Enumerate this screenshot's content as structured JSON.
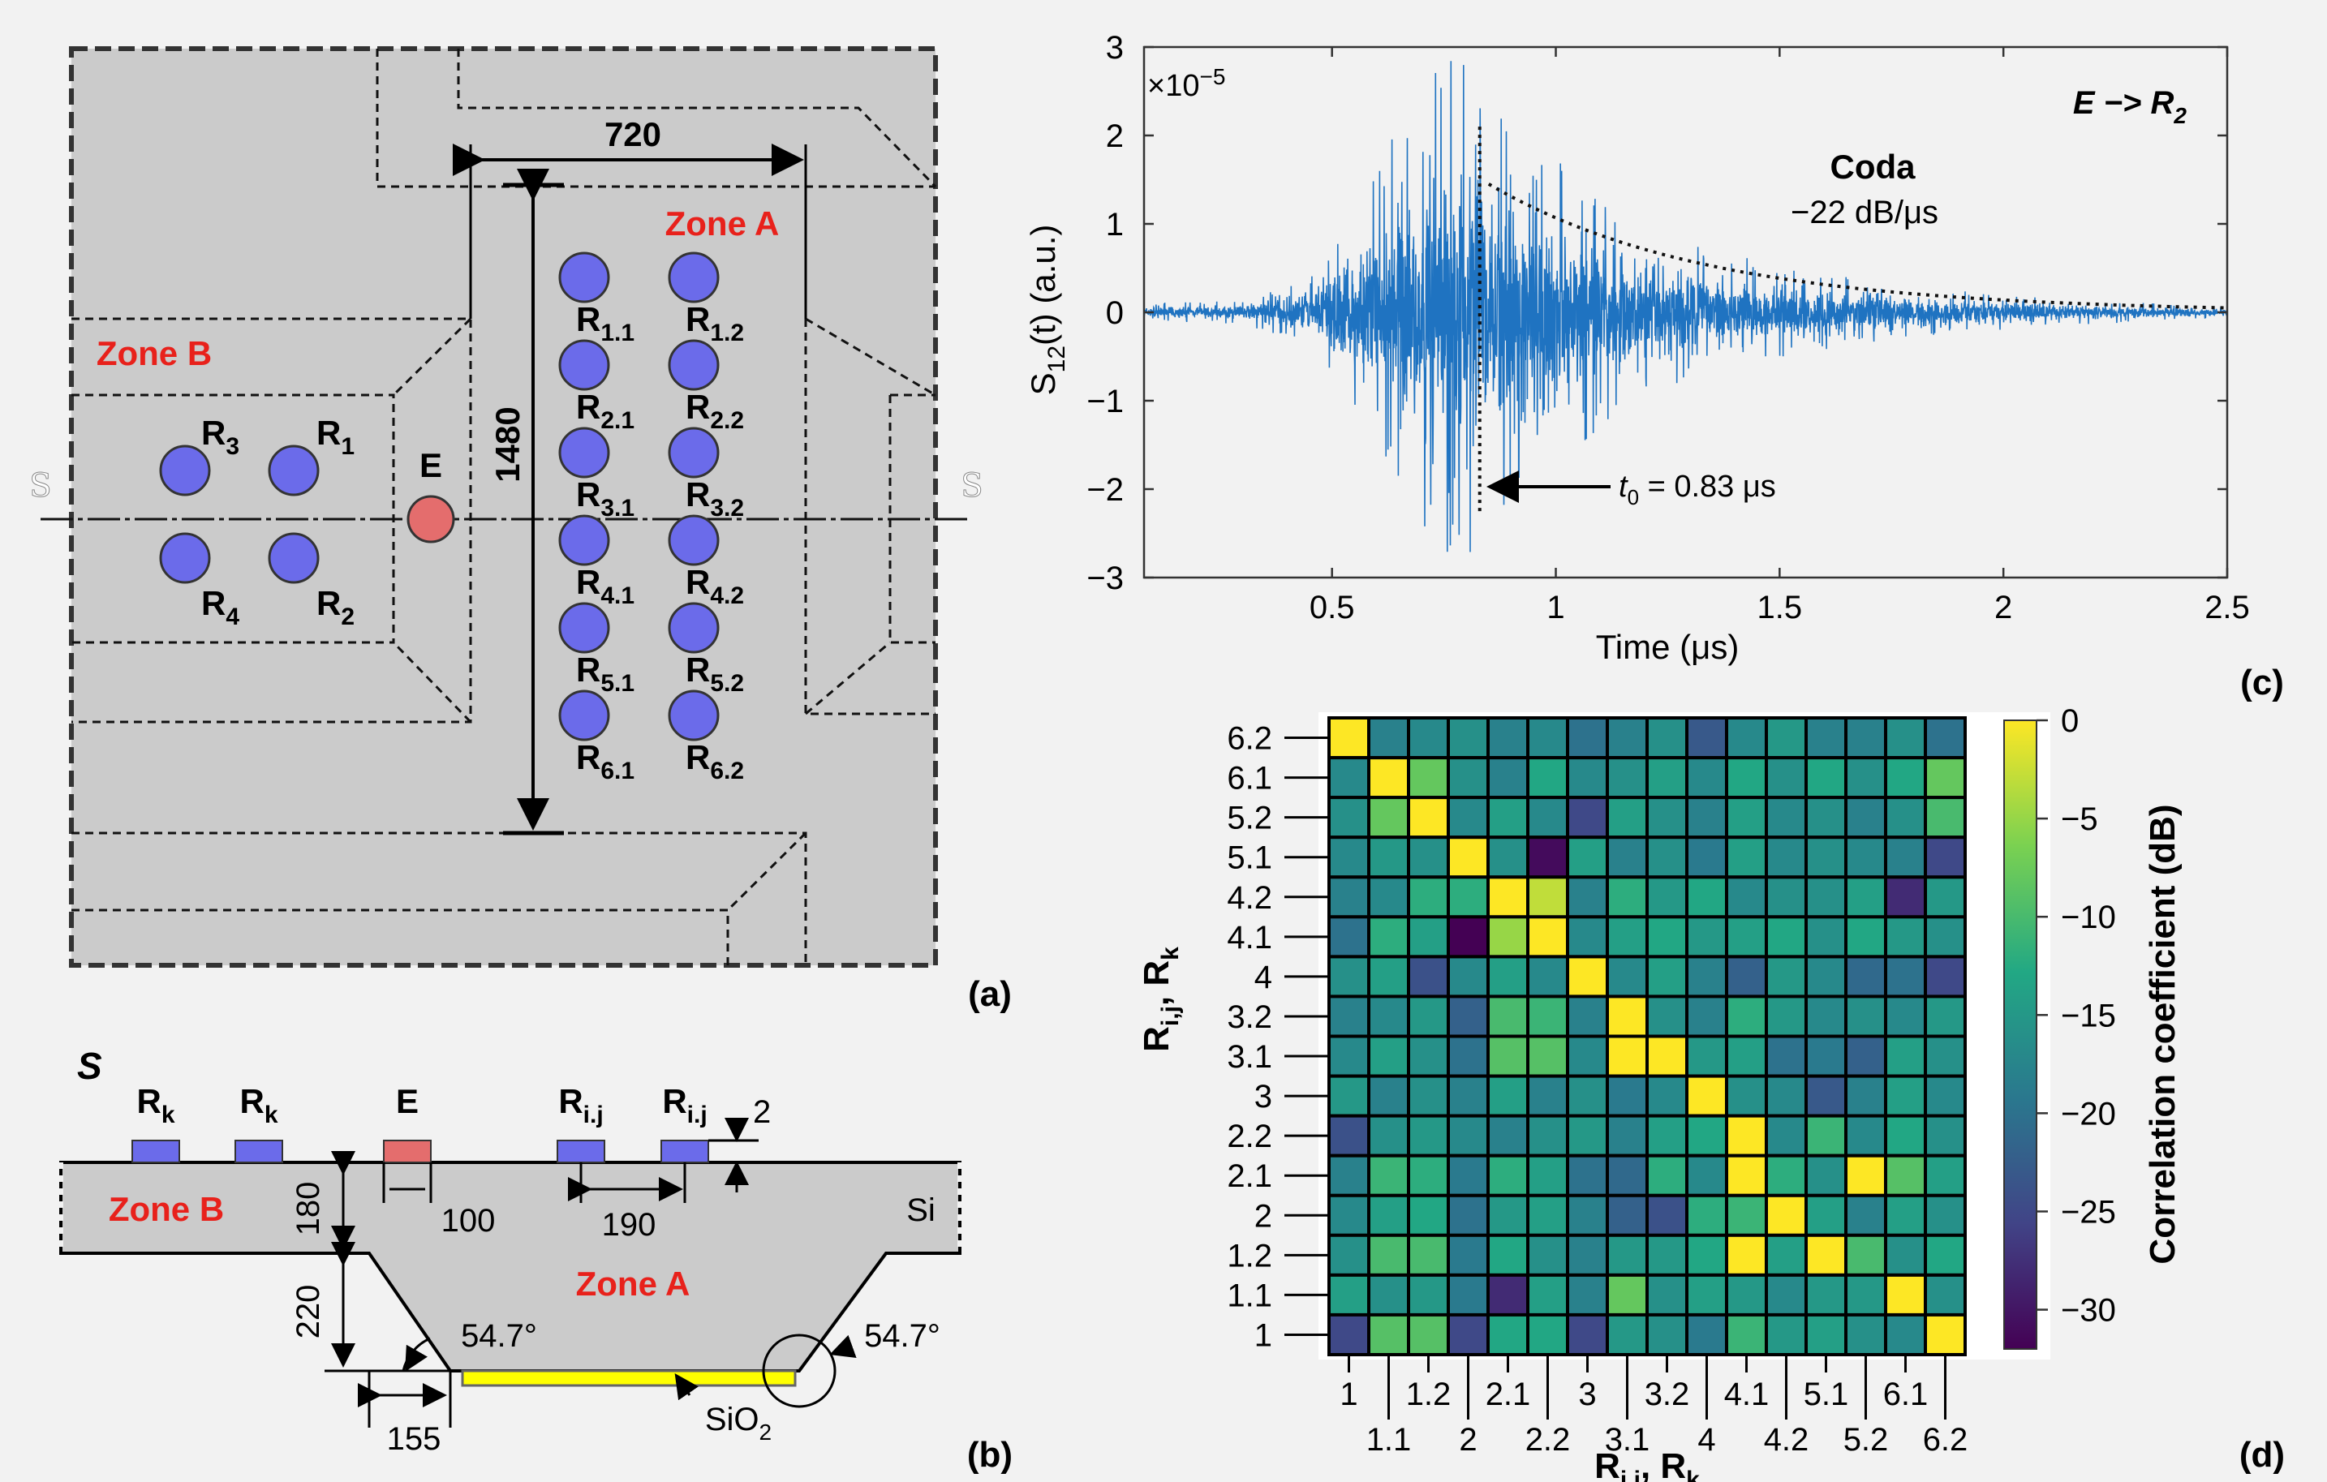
{
  "panel_a": {
    "label": "(a)",
    "dim_width": "720",
    "dim_height": "1480",
    "zone_a": "Zone A",
    "zone_b": "Zone B",
    "section_left": "S",
    "section_right": "S",
    "emitter": "E",
    "receivers_b": [
      {
        "base": "R",
        "sub": "3"
      },
      {
        "base": "R",
        "sub": "1"
      },
      {
        "base": "R",
        "sub": "4"
      },
      {
        "base": "R",
        "sub": "2"
      }
    ],
    "receivers_a": [
      {
        "base": "R",
        "sub": "1.1"
      },
      {
        "base": "R",
        "sub": "1.2"
      },
      {
        "base": "R",
        "sub": "2.1"
      },
      {
        "base": "R",
        "sub": "2.2"
      },
      {
        "base": "R",
        "sub": "3.1"
      },
      {
        "base": "R",
        "sub": "3.2"
      },
      {
        "base": "R",
        "sub": "4.1"
      },
      {
        "base": "R",
        "sub": "4.2"
      },
      {
        "base": "R",
        "sub": "5.1"
      },
      {
        "base": "R",
        "sub": "5.2"
      },
      {
        "base": "R",
        "sub": "6.1"
      },
      {
        "base": "R",
        "sub": "6.2"
      }
    ],
    "colors": {
      "receiver": "#6b6bea",
      "emitter": "#e46d6d",
      "zone_label": "#e8211b",
      "substrate": "#cbcbcb"
    }
  },
  "panel_b": {
    "label": "(b)",
    "section_title": "S",
    "rk_base": "R",
    "rk_sub": "k",
    "rij_base": "R",
    "rij_sub": "i.j",
    "emitter": "E",
    "zone_b": "Zone B",
    "zone_a": "Zone A",
    "material": "Si",
    "oxide_base": "SiO",
    "oxide_sub": "2",
    "dims": {
      "pad_height": "2",
      "thickness_top": "180",
      "thickness_cavity": "220",
      "emitter_width": "100",
      "pad_pitch": "190",
      "offset": "155"
    },
    "angle_left": "54.7°",
    "angle_right": "54.7°"
  },
  "panel_c": {
    "label": "(c)",
    "annotation_path": {
      "from": "E",
      "arrow": "−>",
      "to_base": "R",
      "to_sub": "2"
    },
    "coda_title": "Coda",
    "coda_rate": "−22 dB/μs",
    "t0_base": "t",
    "t0_sub": "0",
    "t0_value": " = 0.83 μs",
    "y_multiplier_base": "×10",
    "y_multiplier_exp": "−5",
    "ylabel_base": "S",
    "ylabel_sub": "12",
    "ylabel_rest": "(t) (a.u.)",
    "line_color": "#1f73c1"
  },
  "panel_d": {
    "label": "(d)",
    "ylabel_base": "R",
    "ylabel_sub1": "i,j",
    "ylabel_sep": ", R",
    "ylabel_sub2": "k",
    "xlabel_base": "R",
    "xlabel_sub1": "i,j",
    "xlabel_sep": ", R",
    "xlabel_sub2": "k",
    "colorbar_label": "Correlation coefficient (dB)",
    "colormap": [
      "#440154",
      "#414487",
      "#2a788e",
      "#22a884",
      "#7ad151",
      "#fde725"
    ]
  },
  "chart_data": [
    {
      "type": "line",
      "panel": "c",
      "xlabel": "Time (μs)",
      "ylabel": "S12(t) (a.u.)",
      "y_scale_factor": "1e-5",
      "xlim": [
        0.08,
        2.5
      ],
      "ylim": [
        -3,
        3
      ],
      "xticks": [
        0.5,
        1,
        1.5,
        2,
        2.5
      ],
      "xtick_labels": [
        "0.5",
        "1",
        "1.5",
        "2",
        "2.5"
      ],
      "yticks": [
        -3,
        -2,
        -1,
        0,
        1,
        2,
        3
      ],
      "ytick_labels": [
        "−3",
        "−2",
        "−1",
        "0",
        "1",
        "2",
        "3"
      ],
      "envelope_points": [
        {
          "x": 0.08,
          "y": 0.08
        },
        {
          "x": 0.3,
          "y": 0.1
        },
        {
          "x": 0.45,
          "y": 0.3
        },
        {
          "x": 0.55,
          "y": 0.9
        },
        {
          "x": 0.62,
          "y": 1.4
        },
        {
          "x": 0.7,
          "y": 2.0
        },
        {
          "x": 0.76,
          "y": 2.3
        },
        {
          "x": 0.83,
          "y": 2.1
        },
        {
          "x": 0.95,
          "y": 1.5
        },
        {
          "x": 1.1,
          "y": 1.0
        },
        {
          "x": 1.3,
          "y": 0.6
        },
        {
          "x": 1.5,
          "y": 0.4
        },
        {
          "x": 1.8,
          "y": 0.22
        },
        {
          "x": 2.1,
          "y": 0.12
        },
        {
          "x": 2.5,
          "y": 0.05
        }
      ],
      "t0": 0.83,
      "decay_fit": {
        "x_start": 0.85,
        "y_start": 1.45,
        "x_end": 2.5,
        "y_end": 0.05
      },
      "grid": false
    },
    {
      "type": "heatmap",
      "panel": "d",
      "xlabel": "Ri,j, Rk",
      "ylabel": "Ri,j, Rk",
      "categories": [
        "1",
        "1.1",
        "1.2",
        "2",
        "2.1",
        "2.2",
        "3",
        "3.1",
        "3.2",
        "4",
        "4.1",
        "4.2",
        "5.1",
        "5.2",
        "6.1",
        "6.2"
      ],
      "x_tick_labels_top": [
        "1",
        "1.2",
        "2.1",
        "3",
        "3.2",
        "4.1",
        "5.1",
        "6.1"
      ],
      "x_tick_labels_bottom": [
        "1.1",
        "2",
        "2.2",
        "3.1",
        "4",
        "4.2",
        "5.2",
        "6.2"
      ],
      "colorbar": {
        "min": -32,
        "max": 0,
        "ticks": [
          0,
          -5,
          -10,
          -15,
          -20,
          -25,
          -30
        ],
        "tick_labels": [
          "0",
          "−5",
          "−10",
          "−15",
          "−20",
          "−25",
          "−30"
        ]
      },
      "values": [
        [
          0,
          -18,
          -17,
          -16,
          -18,
          -17,
          -20,
          -18,
          -16,
          -23,
          -17,
          -15,
          -18,
          -18,
          -16,
          -20
        ],
        [
          -17,
          0,
          -8,
          -16,
          -18,
          -13,
          -17,
          -16,
          -14,
          -17,
          -13,
          -16,
          -13,
          -16,
          -13,
          -8
        ],
        [
          -16,
          -8,
          0,
          -17,
          -14,
          -17,
          -25,
          -14,
          -16,
          -18,
          -14,
          -17,
          -16,
          -18,
          -16,
          -10
        ],
        [
          -17,
          -15,
          -16,
          0,
          -16,
          -31,
          -14,
          -18,
          -16,
          -19,
          -14,
          -17,
          -16,
          -17,
          -18,
          -25
        ],
        [
          -18,
          -17,
          -12,
          -12,
          0,
          -3,
          -18,
          -12,
          -15,
          -13,
          -17,
          -16,
          -16,
          -14,
          -28,
          -15
        ],
        [
          -20,
          -12,
          -14,
          -32,
          -5,
          0,
          -17,
          -14,
          -13,
          -15,
          -14,
          -13,
          -16,
          -13,
          -15,
          -16
        ],
        [
          -16,
          -14,
          -24,
          -17,
          -14,
          -17,
          0,
          -17,
          -14,
          -18,
          -22,
          -15,
          -17,
          -21,
          -20,
          -25
        ],
        [
          -18,
          -17,
          -15,
          -22,
          -10,
          -11,
          -18,
          0,
          -16,
          -18,
          -12,
          -15,
          -17,
          -16,
          -17,
          -15
        ],
        [
          -17,
          -14,
          -16,
          -20,
          -9,
          -9,
          -17,
          0,
          0,
          -15,
          -14,
          -20,
          -19,
          -22,
          -14,
          -16
        ],
        [
          -15,
          -18,
          -16,
          -18,
          -14,
          -18,
          -16,
          -19,
          -17,
          0,
          -16,
          -17,
          -23,
          -18,
          -14,
          -17
        ],
        [
          -24,
          -16,
          -15,
          -17,
          -18,
          -16,
          -15,
          -18,
          -14,
          -13,
          0,
          -17,
          -11,
          -17,
          -13,
          -16
        ],
        [
          -18,
          -11,
          -12,
          -19,
          -12,
          -14,
          -20,
          -21,
          -12,
          -17,
          0,
          -12,
          -16,
          0,
          -9,
          -14
        ],
        [
          -17,
          -14,
          -13,
          -20,
          -15,
          -14,
          -18,
          -22,
          -24,
          -12,
          -11,
          0,
          -14,
          -18,
          -14,
          -16
        ],
        [
          -16,
          -10,
          -10,
          -19,
          -13,
          -16,
          -18,
          -15,
          -15,
          -13,
          0,
          -14,
          0,
          -10,
          -16,
          -13
        ],
        [
          -14,
          -16,
          -15,
          -19,
          -28,
          -14,
          -18,
          -8,
          -16,
          -14,
          -15,
          -17,
          -15,
          -15,
          0,
          -16
        ],
        [
          -25,
          -9,
          -9,
          -25,
          -13,
          -13,
          -25,
          -15,
          -16,
          -19,
          -11,
          -15,
          -14,
          -16,
          -17,
          0
        ]
      ],
      "row_order": "top-to-bottom starting at 6.2"
    }
  ]
}
